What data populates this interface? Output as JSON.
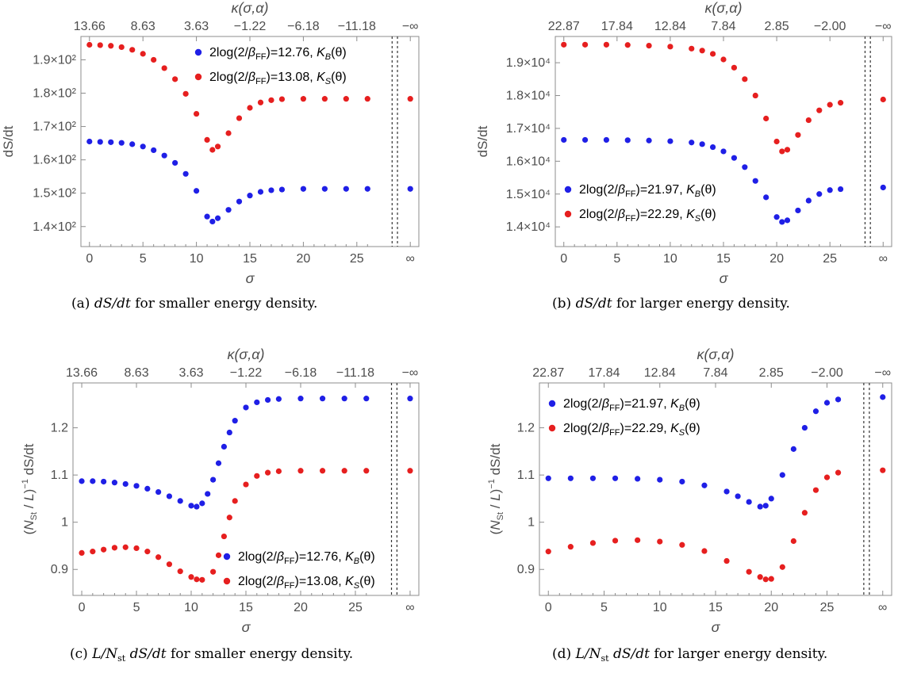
{
  "colors": {
    "series_blue": "#1f1fe6",
    "series_red": "#e61f1f",
    "axis": "#8c8c8c",
    "text": "#4d4d4d"
  },
  "chart_data": [
    {
      "type": "scatter",
      "caption": "(a) dS/dt for smaller energy density.",
      "xlabel": "σ",
      "ylabel": "dS/dt",
      "x2label": "κ(σ,α)",
      "xlim": [
        -0.8,
        30.8
      ],
      "ylim": [
        134,
        197
      ],
      "x_ticks": [
        "0",
        "5",
        "10",
        "15",
        "20",
        "25",
        "∞"
      ],
      "top_ticks": [
        "13.66",
        "8.63",
        "3.63",
        "−1.22",
        "−6.18",
        "−11.18",
        "−∞"
      ],
      "y_ticks": [
        {
          "value": 140,
          "label": "1.4×10²"
        },
        {
          "value": 150,
          "label": "1.5×10²"
        },
        {
          "value": 160,
          "label": "1.6×10²"
        },
        {
          "value": 170,
          "label": "1.7×10²"
        },
        {
          "value": 180,
          "label": "1.8×10²"
        },
        {
          "value": 190,
          "label": "1.9×10²"
        }
      ],
      "asymptote_x": [
        28.3,
        28.8
      ],
      "legend_position": "top-right",
      "series": [
        {
          "name": "2log(2/β_FF)=12.76, K_B(θ)",
          "color": "blue",
          "points": [
            [
              0,
              165.5
            ],
            [
              1,
              165.4
            ],
            [
              2,
              165.3
            ],
            [
              3,
              165.1
            ],
            [
              4,
              164.7
            ],
            [
              5,
              164.0
            ],
            [
              6,
              162.9
            ],
            [
              7,
              161.3
            ],
            [
              8,
              159.1
            ],
            [
              9,
              155.8
            ],
            [
              10,
              150.7
            ],
            [
              11,
              143.0
            ],
            [
              11.5,
              141.5
            ],
            [
              12,
              142.5
            ],
            [
              13,
              145.0
            ],
            [
              14,
              147.5
            ],
            [
              15,
              149.3
            ],
            [
              16,
              150.4
            ],
            [
              17,
              150.9
            ],
            [
              18,
              151.1
            ],
            [
              20,
              151.3
            ],
            [
              22,
              151.3
            ],
            [
              24,
              151.3
            ],
            [
              26,
              151.3
            ]
          ],
          "infinity_value": 151.3
        },
        {
          "name": "2log(2/β_FF)=13.08, K_S(θ)",
          "color": "red",
          "points": [
            [
              0,
              194.5
            ],
            [
              1,
              194.4
            ],
            [
              2,
              194.2
            ],
            [
              3,
              193.8
            ],
            [
              4,
              193.0
            ],
            [
              5,
              191.8
            ],
            [
              6,
              190.0
            ],
            [
              7,
              187.5
            ],
            [
              8,
              184.2
            ],
            [
              9,
              179.8
            ],
            [
              10,
              173.8
            ],
            [
              11,
              166.0
            ],
            [
              11.5,
              163.0
            ],
            [
              12,
              164.0
            ],
            [
              13,
              168.0
            ],
            [
              14,
              172.5
            ],
            [
              15,
              175.6
            ],
            [
              16,
              177.2
            ],
            [
              17,
              177.9
            ],
            [
              18,
              178.2
            ],
            [
              20,
              178.3
            ],
            [
              22,
              178.3
            ],
            [
              24,
              178.3
            ],
            [
              26,
              178.3
            ]
          ],
          "infinity_value": 178.3
        }
      ]
    },
    {
      "type": "scatter",
      "caption": "(b) dS/dt for larger energy density.",
      "xlabel": "σ",
      "ylabel": "dS/dt",
      "x2label": "κ(σ,α)",
      "xlim": [
        -0.8,
        30.8
      ],
      "ylim": [
        13400,
        19800
      ],
      "x_ticks": [
        "0",
        "5",
        "10",
        "15",
        "20",
        "25",
        "∞"
      ],
      "top_ticks": [
        "22.87",
        "17.84",
        "12.84",
        "7.84",
        "2.85",
        "−2.00",
        "−∞"
      ],
      "y_ticks": [
        {
          "value": 14000,
          "label": "1.4×10⁴"
        },
        {
          "value": 15000,
          "label": "1.5×10⁴"
        },
        {
          "value": 16000,
          "label": "1.6×10⁴"
        },
        {
          "value": 17000,
          "label": "1.7×10⁴"
        },
        {
          "value": 18000,
          "label": "1.8×10⁴"
        },
        {
          "value": 19000,
          "label": "1.9×10⁴"
        }
      ],
      "asymptote_x": [
        28.3,
        28.8
      ],
      "legend_position": "bottom-left",
      "series": [
        {
          "name": "2log(2/β_FF)=21.97, K_B(θ)",
          "color": "blue",
          "points": [
            [
              0,
              16650
            ],
            [
              2,
              16650
            ],
            [
              4,
              16650
            ],
            [
              6,
              16640
            ],
            [
              8,
              16630
            ],
            [
              10,
              16610
            ],
            [
              12,
              16570
            ],
            [
              13,
              16520
            ],
            [
              14,
              16430
            ],
            [
              15,
              16300
            ],
            [
              16,
              16100
            ],
            [
              17,
              15820
            ],
            [
              18,
              15400
            ],
            [
              19,
              14900
            ],
            [
              20,
              14300
            ],
            [
              20.5,
              14150
            ],
            [
              21,
              14200
            ],
            [
              22,
              14500
            ],
            [
              23,
              14800
            ],
            [
              24,
              15000
            ],
            [
              25,
              15120
            ],
            [
              26,
              15150
            ]
          ],
          "infinity_value": 15200
        },
        {
          "name": "2log(2/β_FF)=22.29, K_S(θ)",
          "color": "red",
          "points": [
            [
              0,
              19550
            ],
            [
              2,
              19550
            ],
            [
              4,
              19550
            ],
            [
              6,
              19540
            ],
            [
              8,
              19520
            ],
            [
              10,
              19490
            ],
            [
              12,
              19430
            ],
            [
              13,
              19370
            ],
            [
              14,
              19270
            ],
            [
              15,
              19100
            ],
            [
              16,
              18850
            ],
            [
              17,
              18500
            ],
            [
              18,
              18000
            ],
            [
              19,
              17300
            ],
            [
              20,
              16600
            ],
            [
              20.5,
              16300
            ],
            [
              21,
              16350
            ],
            [
              22,
              16800
            ],
            [
              23,
              17250
            ],
            [
              24,
              17550
            ],
            [
              25,
              17720
            ],
            [
              26,
              17780
            ]
          ],
          "infinity_value": 17880
        }
      ]
    },
    {
      "type": "scatter",
      "caption": "(c) (L/N_st) dS/dt for smaller energy density.",
      "xlabel": "σ",
      "ylabel": "(N_St / L)⁻¹ dS/dt",
      "x2label": "κ(σ,α)",
      "xlim": [
        -0.8,
        30.8
      ],
      "ylim": [
        0.845,
        1.295
      ],
      "x_ticks": [
        "0",
        "5",
        "10",
        "15",
        "20",
        "25",
        "∞"
      ],
      "top_ticks": [
        "13.66",
        "8.63",
        "3.63",
        "−1.22",
        "−6.18",
        "−11.18",
        "−∞"
      ],
      "y_ticks": [
        {
          "value": 0.9,
          "label": "0.9"
        },
        {
          "value": 1.0,
          "label": "1"
        },
        {
          "value": 1.1,
          "label": "1.1"
        },
        {
          "value": 1.2,
          "label": "1.2"
        }
      ],
      "asymptote_x": [
        28.3,
        28.8
      ],
      "legend_position": "bottom-right",
      "series": [
        {
          "name": "2log(2/β_FF)=12.76, K_B(θ)",
          "color": "blue",
          "points": [
            [
              0,
              1.087
            ],
            [
              1,
              1.087
            ],
            [
              2,
              1.086
            ],
            [
              3,
              1.084
            ],
            [
              4,
              1.081
            ],
            [
              5,
              1.077
            ],
            [
              6,
              1.071
            ],
            [
              7,
              1.064
            ],
            [
              8,
              1.055
            ],
            [
              9,
              1.045
            ],
            [
              10,
              1.035
            ],
            [
              10.5,
              1.033
            ],
            [
              11,
              1.04
            ],
            [
              11.5,
              1.06
            ],
            [
              12,
              1.09
            ],
            [
              12.5,
              1.125
            ],
            [
              13,
              1.16
            ],
            [
              13.5,
              1.19
            ],
            [
              14,
              1.215
            ],
            [
              15,
              1.243
            ],
            [
              16,
              1.254
            ],
            [
              17,
              1.259
            ],
            [
              18,
              1.261
            ],
            [
              20,
              1.262
            ],
            [
              22,
              1.262
            ],
            [
              24,
              1.262
            ],
            [
              26,
              1.262
            ]
          ],
          "infinity_value": 1.262
        },
        {
          "name": "2log(2/β_FF)=13.08, K_S(θ)",
          "color": "red",
          "points": [
            [
              0,
              0.935
            ],
            [
              1,
              0.938
            ],
            [
              2,
              0.942
            ],
            [
              3,
              0.946
            ],
            [
              4,
              0.947
            ],
            [
              5,
              0.945
            ],
            [
              6,
              0.938
            ],
            [
              7,
              0.926
            ],
            [
              8,
              0.911
            ],
            [
              9,
              0.896
            ],
            [
              10,
              0.884
            ],
            [
              10.5,
              0.879
            ],
            [
              11,
              0.878
            ],
            [
              12,
              0.895
            ],
            [
              12.5,
              0.93
            ],
            [
              13,
              0.97
            ],
            [
              13.5,
              1.01
            ],
            [
              14,
              1.045
            ],
            [
              15,
              1.08
            ],
            [
              16,
              1.098
            ],
            [
              17,
              1.105
            ],
            [
              18,
              1.108
            ],
            [
              20,
              1.109
            ],
            [
              22,
              1.109
            ],
            [
              24,
              1.109
            ],
            [
              26,
              1.109
            ]
          ],
          "infinity_value": 1.109
        }
      ]
    },
    {
      "type": "scatter",
      "caption": "(d) (L/N_st) dS/dt for larger energy density.",
      "xlabel": "σ",
      "ylabel": "(N_St / L)⁻¹ dS/dt",
      "x2label": "κ(σ,α)",
      "xlim": [
        -0.8,
        30.8
      ],
      "ylim": [
        0.845,
        1.295
      ],
      "x_ticks": [
        "0",
        "5",
        "10",
        "15",
        "20",
        "25",
        "∞"
      ],
      "top_ticks": [
        "22.87",
        "17.84",
        "12.84",
        "7.84",
        "2.85",
        "−2.00",
        "−∞"
      ],
      "y_ticks": [
        {
          "value": 0.9,
          "label": "0.9"
        },
        {
          "value": 1.0,
          "label": "1"
        },
        {
          "value": 1.1,
          "label": "1.1"
        },
        {
          "value": 1.2,
          "label": "1.2"
        }
      ],
      "asymptote_x": [
        28.3,
        28.8
      ],
      "legend_position": "top-left",
      "series": [
        {
          "name": "2log(2/β_FF)=21.97, K_B(θ)",
          "color": "blue",
          "points": [
            [
              0,
              1.093
            ],
            [
              2,
              1.093
            ],
            [
              4,
              1.093
            ],
            [
              6,
              1.093
            ],
            [
              8,
              1.092
            ],
            [
              10,
              1.09
            ],
            [
              12,
              1.086
            ],
            [
              14,
              1.078
            ],
            [
              16,
              1.065
            ],
            [
              17,
              1.055
            ],
            [
              18,
              1.043
            ],
            [
              19,
              1.033
            ],
            [
              19.5,
              1.035
            ],
            [
              20,
              1.05
            ],
            [
              21,
              1.1
            ],
            [
              22,
              1.155
            ],
            [
              23,
              1.2
            ],
            [
              24,
              1.235
            ],
            [
              25,
              1.253
            ],
            [
              26,
              1.26
            ]
          ],
          "infinity_value": 1.265
        },
        {
          "name": "2log(2/β_FF)=22.29, K_S(θ)",
          "color": "red",
          "points": [
            [
              0,
              0.938
            ],
            [
              2,
              0.948
            ],
            [
              4,
              0.956
            ],
            [
              6,
              0.961
            ],
            [
              8,
              0.962
            ],
            [
              10,
              0.959
            ],
            [
              12,
              0.952
            ],
            [
              14,
              0.939
            ],
            [
              16,
              0.918
            ],
            [
              18,
              0.895
            ],
            [
              19,
              0.884
            ],
            [
              19.5,
              0.879
            ],
            [
              20,
              0.88
            ],
            [
              21,
              0.905
            ],
            [
              22,
              0.96
            ],
            [
              23,
              1.02
            ],
            [
              24,
              1.068
            ],
            [
              25,
              1.095
            ],
            [
              26,
              1.105
            ]
          ],
          "infinity_value": 1.11
        }
      ]
    }
  ]
}
